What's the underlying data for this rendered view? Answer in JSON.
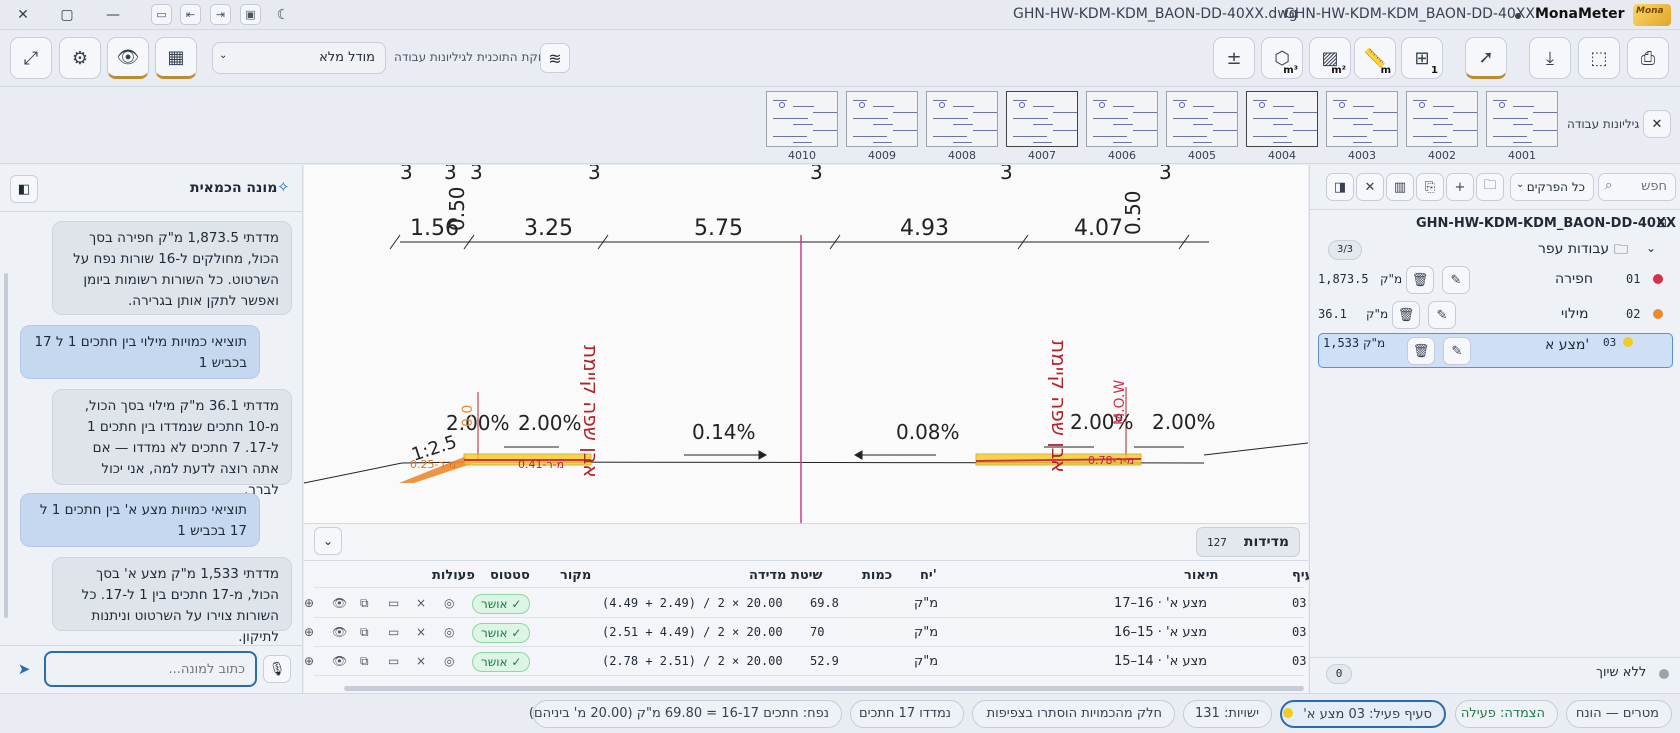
{
  "titlebar": {
    "file_tab_1": "GHN-HW-KDM-KDM_BAON-DD-40XX.dwg",
    "file_tab_2": "GHN-HW-KDM-KDM_BAON-DD-40XX",
    "app_name": "MonaMeter",
    "logo_text": "Mona"
  },
  "toolbar": {
    "model_select": "מודל מלא",
    "layers_label": "חלוקת התוכנית לגיליונות עבודה",
    "m3": "m³",
    "m2": "m²",
    "m": "m",
    "count": "1",
    "plus_minus": "±"
  },
  "sheets": {
    "label": "גיליונות עבודה",
    "items": [
      "4010",
      "4009",
      "4008",
      "4007",
      "4006",
      "4005",
      "4004",
      "4003",
      "4002",
      "4001"
    ]
  },
  "assistant": {
    "title": "מונה הכמאית",
    "input_placeholder": "כתוב למונה...",
    "messages": [
      {
        "role": "bot",
        "text": "מדדתי 1,873.5 מ\"ק חפירה בסך הכול, מחולקים ל-16 שורות נפח על השרטוט. כל השורות רשומות ביומן ואפשר לתקן אותן בגרירה."
      },
      {
        "role": "user",
        "text": "תוציאי כמויות מילוי בין חתכים 1 ל 17 בכביש 1"
      },
      {
        "role": "bot",
        "text": "מדדתי 36.1 מ\"ק מילוי בסך הכול, מ-10 חתכים שנמדדו בין חתכים 1 ל-17. 7 חתכים לא נמדדו — אם אתה רוצה לדעת למה, אני יכול לברר."
      },
      {
        "role": "user",
        "text": "תוציאי כמויות מצע א' בין חתכים 1 ל 17 בכביש 1"
      },
      {
        "role": "bot",
        "text": "מדדתי 1,533 מ\"ק מצע א' בסך הכול, מ-17 חתכים בין 1 ל-17. כל השורות צוירו על השרטוט וניתנות לתיקון."
      }
    ]
  },
  "drawing": {
    "dims": [
      "1.56",
      "0.50",
      "3.25",
      "5.75",
      "4.93",
      "4.07",
      "0.50"
    ],
    "top_marks": [
      "3",
      "3",
      "3",
      "3",
      "3",
      "3",
      "3"
    ],
    "slopes_left": [
      "2.00%",
      "2.00%"
    ],
    "slopes_right": [
      "2.00%",
      "2.00%"
    ],
    "center_slopes": [
      "0.14%",
      "0.08%"
    ],
    "curb_label": "אבן שפה קיימת",
    "ratio": "1:2.5",
    "labels": [
      "מ-ר-0.25",
      "מ-ר-0.41",
      "מ-ר-0.78"
    ],
    "annot": "0.0",
    "annot_r": "M.O.W"
  },
  "measurements": {
    "title": "מדידות",
    "count": "127",
    "columns": [
      "סעיף",
      "תיאור",
      "יח'",
      "כמות",
      "שיטת מדידה",
      "מקור",
      "סטטוס",
      "פעולות"
    ],
    "rows": [
      {
        "section": "03",
        "desc": "מצע א' · 16–17",
        "unit": "מ\"ק",
        "qty": "69.8",
        "method": "(4.49 + 2.49) / 2 × 20.00",
        "source": "",
        "status": "אושר"
      },
      {
        "section": "03",
        "desc": "מצע א' · 15–16",
        "unit": "מ\"ק",
        "qty": "70",
        "method": "(2.51 + 4.49) / 2 × 20.00",
        "source": "",
        "status": "אושר"
      },
      {
        "section": "03",
        "desc": "מצע א' · 14–15",
        "unit": "מ\"ק",
        "qty": "52.9",
        "method": "(2.78 + 2.51) / 2 × 20.00",
        "source": "",
        "status": "אושר"
      }
    ]
  },
  "panel": {
    "search_placeholder": "חפש",
    "filter": "כל הפרקים",
    "file": "GHN-HW-KDM-KDM_BAON-DD-40XX",
    "group": "עבודות עפר",
    "group_count": "3/3",
    "layers": [
      {
        "code": "01",
        "name": "חפירה",
        "unit": "מ\"ק",
        "qty": "1,873.5",
        "color": "#d92f4a"
      },
      {
        "code": "02",
        "name": "מילוי",
        "unit": "מ\"ק",
        "qty": "36.1",
        "color": "#ec8a2f"
      },
      {
        "code": "03",
        "name": "מצע א'",
        "unit": "מ\"ק",
        "qty": "1,533",
        "color": "#f2cc21"
      }
    ],
    "unassigned": "ללא שיוך",
    "unassigned_count": "0"
  },
  "status": {
    "items": [
      "מטרים — הונח",
      "הצמדה: פעילה",
      "סעיף פעיל: 03 מצע א'",
      "ישויות: 131",
      "חלק מהכמויות הוסתרו בצפיפות",
      "נמדדו 17 חתכים",
      "נפח: חתכים 16-17 = 69.80 מ\"ק (20.00 מ' ביניהם)"
    ]
  },
  "colors": {
    "accent": "#c08a2e",
    "primary": "#2b6cb0",
    "approved": "#1e7a44",
    "selected_layer": "#cfe0f6"
  }
}
